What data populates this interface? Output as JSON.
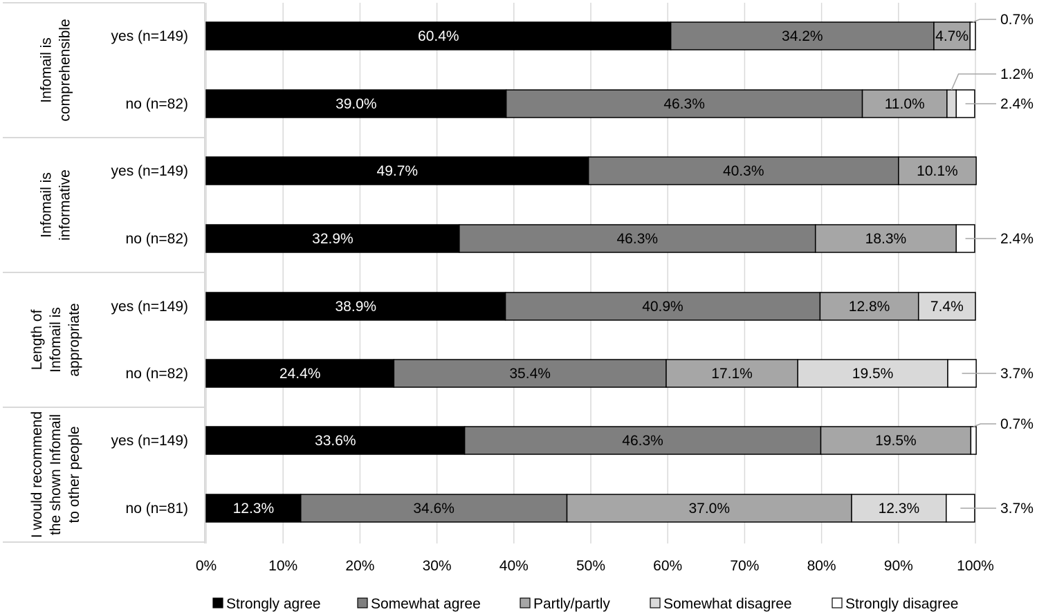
{
  "chart_data": {
    "type": "bar",
    "stacked": true,
    "orientation": "horizontal",
    "normalized_percent": true,
    "xlim": [
      0,
      100
    ],
    "x_ticks": [
      "0%",
      "10%",
      "20%",
      "30%",
      "40%",
      "50%",
      "60%",
      "70%",
      "80%",
      "90%",
      "100%"
    ],
    "grid": true,
    "legend_position": "bottom",
    "legend": [
      "Strongly agree",
      "Somewhat agree",
      "Partly/partly",
      "Somewhat disagree",
      "Strongly disagree"
    ],
    "colors": {
      "Strongly agree": "#000000",
      "Somewhat agree": "#7f7f7f",
      "Partly/partly": "#a6a6a6",
      "Somewhat disagree": "#d9d9d9",
      "Strongly disagree": "#ffffff"
    },
    "groups": [
      {
        "label": "Infomail is comprehensible",
        "rows": [
          {
            "label": "yes (n=149)",
            "values": [
              60.4,
              34.2,
              4.7,
              0,
              0.7
            ],
            "value_labels": [
              "60.4%",
              "34.2%",
              "4.7%",
              "",
              ""
            ],
            "outside_labels": [
              {
                "series": 4,
                "text": "0.7%"
              }
            ]
          },
          {
            "label": "no (n=82)",
            "values": [
              39.0,
              46.3,
              11.0,
              1.2,
              2.4
            ],
            "value_labels": [
              "39.0%",
              "46.3%",
              "11.0%",
              "",
              ""
            ],
            "outside_labels": [
              {
                "series": 3,
                "text": "1.2%"
              },
              {
                "series": 4,
                "text": "2.4%"
              }
            ]
          }
        ]
      },
      {
        "label": "Infomail is informative",
        "rows": [
          {
            "label": "yes (n=149)",
            "values": [
              49.7,
              40.3,
              10.1,
              0,
              0
            ],
            "value_labels": [
              "49.7%",
              "40.3%",
              "10.1%",
              "",
              ""
            ],
            "outside_labels": []
          },
          {
            "label": "no (n=82)",
            "values": [
              32.9,
              46.3,
              18.3,
              0,
              2.4
            ],
            "value_labels": [
              "32.9%",
              "46.3%",
              "18.3%",
              "",
              ""
            ],
            "outside_labels": [
              {
                "series": 4,
                "text": "2.4%"
              }
            ]
          }
        ]
      },
      {
        "label": "Length of Infomail is appropriate",
        "rows": [
          {
            "label": "yes (n=149)",
            "values": [
              38.9,
              40.9,
              12.8,
              7.4,
              0
            ],
            "value_labels": [
              "38.9%",
              "40.9%",
              "12.8%",
              "7.4%",
              ""
            ],
            "outside_labels": []
          },
          {
            "label": "no (n=82)",
            "values": [
              24.4,
              35.4,
              17.1,
              19.5,
              3.7
            ],
            "value_labels": [
              "24.4%",
              "35.4%",
              "17.1%",
              "19.5%",
              ""
            ],
            "outside_labels": [
              {
                "series": 4,
                "text": "3.7%"
              }
            ]
          }
        ]
      },
      {
        "label": "I would recommend the shown Infomail to other people",
        "rows": [
          {
            "label": "yes (n=149)",
            "values": [
              33.6,
              46.3,
              19.5,
              0,
              0.7
            ],
            "value_labels": [
              "33.6%",
              "46.3%",
              "19.5%",
              "",
              ""
            ],
            "outside_labels": [
              {
                "series": 4,
                "text": "0.7%"
              }
            ]
          },
          {
            "label": "no (n=81)",
            "values": [
              12.3,
              34.6,
              37.0,
              12.3,
              3.7
            ],
            "value_labels": [
              "12.3%",
              "34.6%",
              "37.0%",
              "12.3%",
              ""
            ],
            "outside_labels": [
              {
                "series": 4,
                "text": "3.7%"
              }
            ]
          }
        ]
      }
    ]
  }
}
